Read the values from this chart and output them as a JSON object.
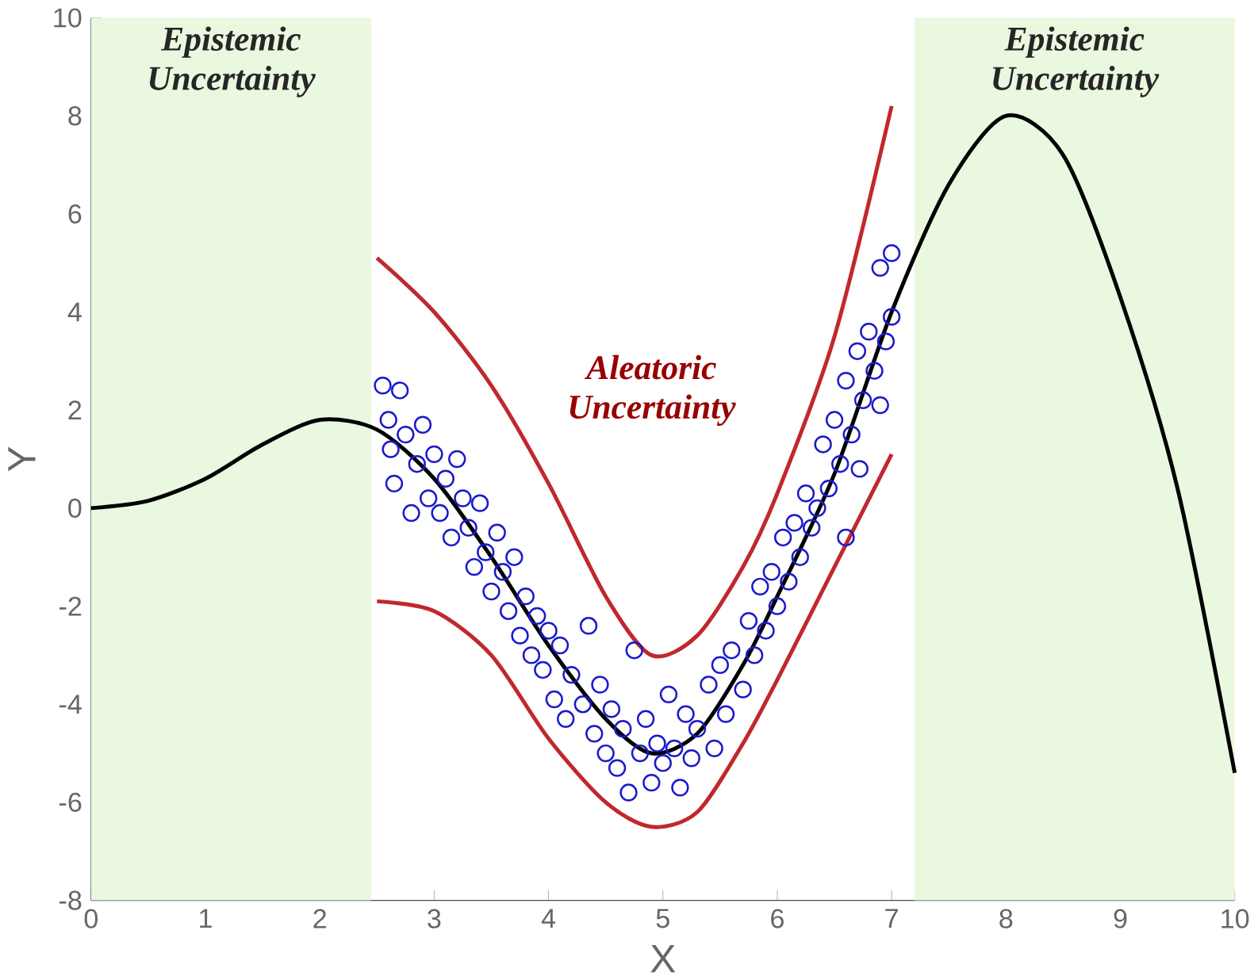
{
  "chart_data": {
    "type": "line",
    "xlabel": "X",
    "ylabel": "Y",
    "xlim": [
      0,
      10
    ],
    "ylim": [
      -8,
      10
    ],
    "xticks": [
      0,
      1,
      2,
      3,
      4,
      5,
      6,
      7,
      8,
      9,
      10
    ],
    "yticks": [
      -8,
      -6,
      -4,
      -2,
      0,
      2,
      4,
      6,
      8,
      10
    ],
    "grid": false,
    "bands": [
      {
        "axis": "x",
        "from": 0,
        "to": 2.45,
        "label": "Epistemic Uncertainty",
        "color": "#eaf8e0"
      },
      {
        "axis": "x",
        "from": 7.2,
        "to": 10,
        "label": "Epistemic Uncertainty",
        "color": "#eaf8e0"
      }
    ],
    "annotations": [
      "Aleatoric Uncertainty"
    ],
    "series": [
      {
        "type": "scatter",
        "color": "#1a1acc",
        "marker": "circle",
        "x": [
          2.55,
          2.6,
          2.62,
          2.65,
          2.7,
          2.75,
          2.8,
          2.85,
          2.9,
          2.95,
          3.0,
          3.05,
          3.1,
          3.15,
          3.2,
          3.25,
          3.3,
          3.35,
          3.4,
          3.45,
          3.5,
          3.55,
          3.6,
          3.65,
          3.7,
          3.75,
          3.8,
          3.85,
          3.9,
          3.95,
          4.0,
          4.05,
          4.1,
          4.15,
          4.2,
          4.3,
          4.35,
          4.4,
          4.45,
          4.5,
          4.55,
          4.6,
          4.65,
          4.7,
          4.75,
          4.8,
          4.85,
          4.9,
          4.95,
          5.0,
          5.05,
          5.1,
          5.15,
          5.2,
          5.25,
          5.3,
          5.4,
          5.45,
          5.5,
          5.55,
          5.6,
          5.7,
          5.75,
          5.8,
          5.85,
          5.9,
          5.95,
          6.0,
          6.05,
          6.1,
          6.15,
          6.2,
          6.25,
          6.3,
          6.35,
          6.4,
          6.45,
          6.5,
          6.55,
          6.6,
          6.6,
          6.65,
          6.7,
          6.72,
          6.75,
          6.8,
          6.85,
          6.9,
          6.9,
          6.95,
          7.0,
          7.0
        ],
        "values": [
          2.5,
          1.8,
          1.2,
          0.5,
          2.4,
          1.5,
          -0.1,
          0.9,
          1.7,
          0.2,
          1.1,
          -0.1,
          0.6,
          -0.6,
          1.0,
          0.2,
          -0.4,
          -1.2,
          0.1,
          -0.9,
          -1.7,
          -0.5,
          -1.3,
          -2.1,
          -1.0,
          -2.6,
          -1.8,
          -3.0,
          -2.2,
          -3.3,
          -2.5,
          -3.9,
          -2.8,
          -4.3,
          -3.4,
          -4.0,
          -2.4,
          -4.6,
          -3.6,
          -5.0,
          -4.1,
          -5.3,
          -4.5,
          -5.8,
          -2.9,
          -5.0,
          -4.3,
          -5.6,
          -4.8,
          -5.2,
          -3.8,
          -4.9,
          -5.7,
          -4.2,
          -5.1,
          -4.5,
          -3.6,
          -4.9,
          -3.2,
          -4.2,
          -2.9,
          -3.7,
          -2.3,
          -3.0,
          -1.6,
          -2.5,
          -1.3,
          -2.0,
          -0.6,
          -1.5,
          -0.3,
          -1.0,
          0.3,
          -0.4,
          0.0,
          1.3,
          0.4,
          1.8,
          0.9,
          -0.6,
          2.6,
          1.5,
          3.2,
          0.8,
          2.2,
          3.6,
          2.8,
          4.9,
          2.1,
          3.4,
          5.2,
          3.9
        ]
      },
      {
        "color": "#000000",
        "marker": "none",
        "x": [
          0,
          0.5,
          1,
          1.5,
          2,
          2.5,
          3,
          3.5,
          4,
          4.5,
          4.9,
          5.3,
          5.7,
          6,
          6.5,
          7,
          7.5,
          8,
          8.5,
          9,
          9.5,
          10
        ],
        "values": [
          0,
          0.15,
          0.6,
          1.3,
          1.8,
          1.6,
          0.6,
          -1.0,
          -2.8,
          -4.3,
          -5.0,
          -4.6,
          -3.2,
          -1.8,
          0.7,
          4.0,
          6.6,
          8.0,
          7.2,
          4.3,
          0.4,
          -5.4
        ]
      },
      {
        "color": "#c0282d",
        "marker": "none",
        "x": [
          2.5,
          3,
          3.5,
          4,
          4.5,
          4.9,
          5.3,
          5.7,
          6,
          6.5,
          7
        ],
        "values": [
          5.1,
          4.0,
          2.5,
          0.5,
          -1.8,
          -3.0,
          -2.6,
          -1.2,
          0.3,
          3.5,
          8.2
        ]
      },
      {
        "color": "#c0282d",
        "marker": "none",
        "x": [
          2.5,
          3,
          3.5,
          4,
          4.5,
          4.9,
          5.3,
          5.7,
          6,
          6.5,
          7
        ],
        "values": [
          -1.9,
          -2.1,
          -3.0,
          -4.7,
          -6.0,
          -6.5,
          -6.2,
          -4.8,
          -3.5,
          -1.2,
          1.1
        ]
      }
    ]
  }
}
